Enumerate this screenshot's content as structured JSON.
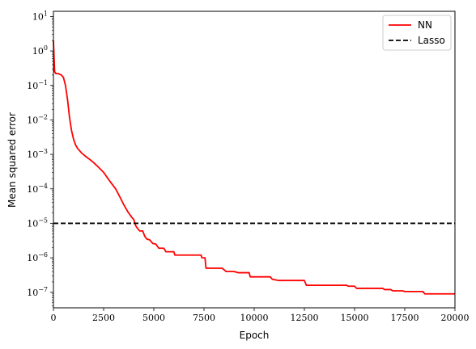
{
  "chart_data": {
    "type": "line",
    "xlabel": "Epoch",
    "ylabel": "Mean squared error",
    "xlim": [
      0,
      20000
    ],
    "ylim_log10": [
      -7.45,
      1.15
    ],
    "yscale": "log",
    "grid": false,
    "legend_position": "top-right",
    "x_ticks": [
      0,
      2500,
      5000,
      7500,
      10000,
      12500,
      15000,
      17500,
      20000
    ],
    "x_tick_labels": [
      "0",
      "2500",
      "5000",
      "7500",
      "10000",
      "12500",
      "15000",
      "17500",
      "20000"
    ],
    "y_tick_exponents": [
      -7,
      -6,
      -5,
      -4,
      -3,
      -2,
      -1,
      0,
      1
    ],
    "y_tick_labels": [
      "10",
      "10",
      "10",
      "10",
      "10",
      "10",
      "10",
      "10",
      "10"
    ],
    "y_tick_superscripts": [
      "−7",
      "−6",
      "−5",
      "−4",
      "−3",
      "−2",
      "−1",
      "0",
      "1"
    ],
    "series": [
      {
        "name": "NN",
        "color": "#ff0000",
        "style": "solid",
        "points": [
          [
            0,
            2.0
          ],
          [
            60,
            0.25
          ],
          [
            120,
            0.22
          ],
          [
            250,
            0.22
          ],
          [
            400,
            0.2
          ],
          [
            500,
            0.17
          ],
          [
            600,
            0.1
          ],
          [
            700,
            0.04
          ],
          [
            800,
            0.012
          ],
          [
            900,
            0.005
          ],
          [
            1000,
            0.0028
          ],
          [
            1100,
            0.0019
          ],
          [
            1200,
            0.0015
          ],
          [
            1400,
            0.0011
          ],
          [
            1600,
            0.00088
          ],
          [
            1800,
            0.00072
          ],
          [
            2000,
            0.00058
          ],
          [
            2200,
            0.00045
          ],
          [
            2500,
            0.0003
          ],
          [
            2800,
            0.00017
          ],
          [
            3100,
            0.0001
          ],
          [
            3300,
            6e-05
          ],
          [
            3500,
            3.5e-05
          ],
          [
            3700,
            2.2e-05
          ],
          [
            3900,
            1.5e-05
          ],
          [
            4000,
            1.3e-05
          ],
          [
            4100,
            8.5e-06
          ],
          [
            4200,
            7e-06
          ],
          [
            4300,
            6e-06
          ],
          [
            4450,
            6e-06
          ],
          [
            4550,
            4.2e-06
          ],
          [
            4650,
            3.5e-06
          ],
          [
            4800,
            3.3e-06
          ],
          [
            4950,
            2.6e-06
          ],
          [
            5100,
            2.5e-06
          ],
          [
            5250,
            1.9e-06
          ],
          [
            5500,
            1.9e-06
          ],
          [
            5600,
            1.5e-06
          ],
          [
            5800,
            1.5e-06
          ],
          [
            6000,
            1.5e-06
          ],
          [
            6050,
            1.2e-06
          ],
          [
            7350,
            1.2e-06
          ],
          [
            7400,
            1e-06
          ],
          [
            7550,
            1e-06
          ],
          [
            7600,
            5e-07
          ],
          [
            8400,
            5e-07
          ],
          [
            8500,
            4.5e-07
          ],
          [
            8600,
            4e-07
          ],
          [
            9000,
            4e-07
          ],
          [
            9200,
            3.7e-07
          ],
          [
            9750,
            3.7e-07
          ],
          [
            9800,
            2.8e-07
          ],
          [
            10800,
            2.8e-07
          ],
          [
            10900,
            2.4e-07
          ],
          [
            11200,
            2.2e-07
          ],
          [
            12500,
            2.2e-07
          ],
          [
            12600,
            1.6e-07
          ],
          [
            14600,
            1.6e-07
          ],
          [
            14700,
            1.5e-07
          ],
          [
            15000,
            1.5e-07
          ],
          [
            15100,
            1.3e-07
          ],
          [
            16400,
            1.3e-07
          ],
          [
            16500,
            1.2e-07
          ],
          [
            16800,
            1.2e-07
          ],
          [
            16900,
            1.1e-07
          ],
          [
            17400,
            1.1e-07
          ],
          [
            17500,
            1.05e-07
          ],
          [
            18400,
            1.05e-07
          ],
          [
            18500,
            9e-08
          ],
          [
            20000,
            9e-08
          ]
        ]
      },
      {
        "name": "Lasso",
        "color": "#000000",
        "style": "dashed",
        "points": [
          [
            0,
            1e-05
          ],
          [
            20000,
            1e-05
          ]
        ]
      }
    ]
  }
}
